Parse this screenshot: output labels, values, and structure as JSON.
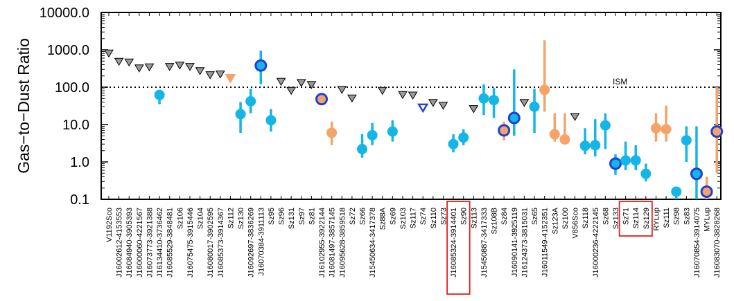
{
  "chart_data": {
    "type": "scatter",
    "ylabel": "Gas−to−Dust Ratio",
    "yscale": "log",
    "ylim": [
      0.1,
      10000
    ],
    "yticks": [
      "0.1",
      "1.0",
      "10.0",
      "100.0",
      "1000.0",
      "10000.0"
    ],
    "reference_line": {
      "label": "ISM",
      "value": 100
    },
    "categories": [
      "V1192Sco",
      "J16002612-4153553",
      "J16084940-3905393",
      "J16000060-4221567",
      "J16073773-3921388",
      "J16134410-3736462",
      "J16085529-3848481",
      "Sz106",
      "J16075475-3915446",
      "Sz104",
      "J16080017-3902595",
      "J16085373-3914367",
      "Sz112",
      "Sz130",
      "J16092697-3836269",
      "J16070384-3911113",
      "Sz95",
      "Sz96",
      "Sz131",
      "Sz97",
      "Sz81",
      "J16102955-3922144",
      "J16081497-3857145",
      "J16095628-3859518",
      "Sz72",
      "Sz66",
      "J15450634-3417378",
      "Sz88A",
      "Sz69",
      "Sz103",
      "Sz117",
      "Sz74",
      "Sz110",
      "Sz73",
      "J16085324-3914401",
      "Sz90",
      "Sz113",
      "J15450887-3417333",
      "Sz108B",
      "Sz84",
      "J16090141-3925119",
      "J16124373-3815031",
      "Sz65",
      "J16011549-4152351",
      "Sz123A",
      "Sz100",
      "V856Sco",
      "Sz118",
      "J16000236-4222145",
      "Sz68",
      "Sz133",
      "Sz71",
      "Sz114",
      "Sz129",
      "RYLup",
      "Sz111",
      "Sz98",
      "Sz83",
      "J16070854-3914075",
      "MYLup",
      "J16083070-3828268"
    ],
    "highlighted_categories": [
      "J16085324-3914401",
      "Sz90",
      "Sz71",
      "Sz114",
      "Sz129"
    ],
    "legend": "none",
    "points": [
      {
        "category": "V1192Sco",
        "value": 800,
        "marker": "gray-down-triangle",
        "kind": "upper limit"
      },
      {
        "category": "J16002612-4153553",
        "value": 480,
        "marker": "gray-down-triangle",
        "kind": "upper limit"
      },
      {
        "category": "J16084940-3905393",
        "value": 460,
        "marker": "gray-down-triangle",
        "kind": "upper limit"
      },
      {
        "category": "J16000060-4221567",
        "value": 320,
        "marker": "gray-down-triangle",
        "kind": "upper limit"
      },
      {
        "category": "J16073773-3921388",
        "value": 340,
        "marker": "gray-down-triangle",
        "kind": "upper limit"
      },
      {
        "category": "J16134410-3736462",
        "value": 62,
        "low": 35,
        "high": 85,
        "marker": "cyan-circle"
      },
      {
        "category": "J16085529-3848481",
        "value": 350,
        "marker": "gray-down-triangle",
        "kind": "upper limit"
      },
      {
        "category": "Sz106",
        "value": 380,
        "marker": "gray-down-triangle",
        "kind": "upper limit"
      },
      {
        "category": "J16075475-3915446",
        "value": 350,
        "marker": "gray-down-triangle",
        "kind": "upper limit"
      },
      {
        "category": "Sz104",
        "value": 270,
        "marker": "gray-down-triangle",
        "kind": "upper limit"
      },
      {
        "category": "J16080017-3902595",
        "value": 210,
        "marker": "gray-down-triangle",
        "kind": "upper limit"
      },
      {
        "category": "J16085373-3914367",
        "value": 220,
        "marker": "gray-down-triangle",
        "kind": "upper limit"
      },
      {
        "category": "Sz112",
        "value": 170,
        "marker": "orange-down-triangle",
        "kind": "upper limit"
      },
      {
        "category": "Sz130",
        "value": 19,
        "low": 6,
        "high": 40,
        "marker": "cyan-circle"
      },
      {
        "category": "J16092697-3836269",
        "value": 42,
        "low": 20,
        "high": 90,
        "marker": "cyan-circle"
      },
      {
        "category": "J16070384-3911113",
        "value": 380,
        "low": 120,
        "high": 950,
        "marker": "cyan-circle-ringed"
      },
      {
        "category": "Sz95",
        "value": 13,
        "low": 6.5,
        "high": 26,
        "marker": "cyan-circle"
      },
      {
        "category": "Sz96",
        "value": 140,
        "marker": "gray-down-triangle",
        "kind": "upper limit"
      },
      {
        "category": "Sz131",
        "value": 80,
        "marker": "gray-down-triangle",
        "kind": "upper limit"
      },
      {
        "category": "Sz97",
        "value": 130,
        "marker": "gray-down-triangle",
        "kind": "upper limit"
      },
      {
        "category": "Sz81",
        "value": 115,
        "marker": "gray-down-triangle",
        "kind": "upper limit"
      },
      {
        "category": "J16102955-3922144",
        "value": 48,
        "marker": "orange-circle-ringed"
      },
      {
        "category": "J16081497-3857145",
        "value": 6,
        "low": 2.8,
        "high": 12,
        "marker": "orange-circle"
      },
      {
        "category": "J16095628-3859518",
        "value": 85,
        "marker": "gray-down-triangle",
        "kind": "upper limit"
      },
      {
        "category": "Sz72",
        "value": 50,
        "marker": "gray-down-triangle",
        "kind": "upper limit"
      },
      {
        "category": "Sz66",
        "value": 2.2,
        "low": 1.3,
        "high": 5.5,
        "marker": "cyan-circle"
      },
      {
        "category": "J15450634-3417378",
        "value": 5.2,
        "low": 2.8,
        "high": 11,
        "marker": "cyan-circle"
      },
      {
        "category": "Sz88A",
        "value": 80,
        "marker": "gray-down-triangle",
        "kind": "upper limit"
      },
      {
        "category": "Sz69",
        "value": 6.5,
        "low": 3.5,
        "high": 13,
        "marker": "cyan-circle"
      },
      {
        "category": "Sz103",
        "value": 62,
        "marker": "gray-down-triangle",
        "kind": "upper limit"
      },
      {
        "category": "Sz117",
        "value": 60,
        "marker": "gray-down-triangle",
        "kind": "upper limit"
      },
      {
        "category": "Sz74",
        "value": 28,
        "marker": "blue-open-down-triangle",
        "kind": "upper limit"
      },
      {
        "category": "Sz110",
        "value": 38,
        "marker": "gray-down-triangle",
        "kind": "upper limit"
      },
      {
        "category": "Sz73",
        "value": 32,
        "marker": "gray-down-triangle",
        "kind": "upper limit"
      },
      {
        "category": "J16085324-3914401",
        "value": 3.0,
        "low": 1.8,
        "high": 5.5,
        "marker": "cyan-circle"
      },
      {
        "category": "Sz90",
        "value": 4.5,
        "low": 2.8,
        "high": 7.5,
        "marker": "cyan-circle"
      },
      {
        "category": "Sz113",
        "value": 26,
        "marker": "gray-down-triangle",
        "kind": "upper limit"
      },
      {
        "category": "J15450887-3417333",
        "value": 50,
        "low": 18,
        "high": 120,
        "marker": "cyan-circle"
      },
      {
        "category": "Sz108B",
        "value": 45,
        "low": 15,
        "high": 95,
        "marker": "cyan-circle"
      },
      {
        "category": "Sz84",
        "value": 7,
        "low": 3.8,
        "high": 12,
        "marker": "orange-circle-ringed"
      },
      {
        "category": "J16090141-3925119",
        "value": 15,
        "low": 5,
        "high": 300,
        "marker": "cyan-circle-ringed"
      },
      {
        "category": "J16124373-3815031",
        "value": 38,
        "marker": "gray-down-triangle",
        "kind": "upper limit"
      },
      {
        "category": "Sz65",
        "value": 30,
        "low": 6,
        "high": 90,
        "marker": "cyan-circle"
      },
      {
        "category": "J16011549-4152351",
        "value": 85,
        "low": 22,
        "high": 1800,
        "marker": "orange-circle"
      },
      {
        "category": "Sz123A",
        "value": 5.5,
        "low": 3.5,
        "high": 20,
        "marker": "orange-circle"
      },
      {
        "category": "Sz100",
        "value": 4,
        "low": 3,
        "high": 20,
        "marker": "orange-circle"
      },
      {
        "category": "V856Sco",
        "value": 16,
        "marker": "gray-down-triangle",
        "kind": "upper limit"
      },
      {
        "category": "Sz118",
        "value": 2.7,
        "low": 1.6,
        "high": 8,
        "marker": "cyan-circle"
      },
      {
        "category": "J16000236-4222145",
        "value": 2.8,
        "low": 1.4,
        "high": 14,
        "marker": "cyan-circle"
      },
      {
        "category": "Sz68",
        "value": 9.5,
        "low": 2.2,
        "high": 20,
        "marker": "cyan-circle"
      },
      {
        "category": "Sz133",
        "value": 0.9,
        "low": 0.45,
        "high": 1.6,
        "marker": "cyan-circle-ringed"
      },
      {
        "category": "Sz71",
        "value": 1.1,
        "low": 0.6,
        "high": 3.5,
        "marker": "cyan-circle"
      },
      {
        "category": "Sz114",
        "value": 1.1,
        "low": 0.6,
        "high": 2.8,
        "marker": "cyan-circle"
      },
      {
        "category": "Sz129",
        "value": 0.48,
        "low": 0.3,
        "high": 0.9,
        "marker": "cyan-circle"
      },
      {
        "category": "RYLup",
        "value": 8,
        "low": 3.5,
        "high": 20,
        "marker": "orange-circle"
      },
      {
        "category": "Sz111",
        "value": 7.5,
        "low": 3.5,
        "high": 32,
        "marker": "orange-circle"
      },
      {
        "category": "Sz98",
        "value": 0.16,
        "low": 0.1,
        "high": 0.2,
        "marker": "cyan-circle"
      },
      {
        "category": "Sz83",
        "value": 3.8,
        "low": 1.0,
        "high": 9,
        "marker": "cyan-circle"
      },
      {
        "category": "J16070854-3914075",
        "value": 0.48,
        "low": 0.1,
        "high": 9,
        "marker": "cyan-circle-ringed"
      },
      {
        "category": "MYLup",
        "value": 0.16,
        "low": 0.1,
        "high": 0.4,
        "marker": "orange-circle-ringed"
      },
      {
        "category": "J16083070-3828268",
        "value": 6.5,
        "low": 0.5,
        "high": 100,
        "marker": "orange-circle-ringed"
      }
    ],
    "colors": {
      "cyan": "#13b6e6",
      "orange": "#f5a366",
      "ring_blue": "#1f3fd6",
      "gray_fill": "#9a9a9a",
      "highlight_box": "#e0201c"
    }
  }
}
